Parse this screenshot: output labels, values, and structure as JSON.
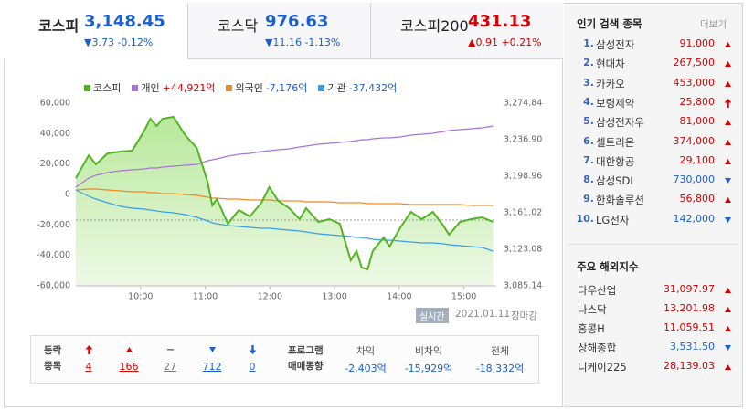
{
  "tabs": [
    {
      "name": "코스피",
      "value": "3,148.45",
      "change": "▼3.73 -0.12%",
      "trend": "down"
    },
    {
      "name": "코스닥",
      "value": "976.63",
      "change": "▼11.16 -1.13%",
      "trend": "down"
    },
    {
      "name": "코스피200",
      "value": "431.13",
      "change": "▲0.91 +0.21%",
      "trend": "up"
    }
  ],
  "chart_data": {
    "type": "line",
    "legend": "top-left",
    "grid": false,
    "x": [
      9.0,
      9.2,
      9.31,
      9.49,
      9.69,
      9.87,
      10.06,
      10.15,
      10.25,
      10.34,
      10.51,
      10.69,
      10.87,
      11.04,
      11.11,
      11.18,
      11.35,
      11.52,
      11.69,
      11.87,
      11.99,
      12.13,
      12.3,
      12.46,
      12.56,
      12.75,
      12.92,
      13.08,
      13.25,
      13.34,
      13.42,
      13.51,
      13.59,
      13.76,
      13.85,
      14.01,
      14.18,
      14.35,
      14.52,
      14.69,
      14.77,
      14.94,
      15.11,
      15.28,
      15.45
    ],
    "xlim": [
      9,
      15.5
    ],
    "xticks": [
      {
        "value": 10,
        "label": "10:00"
      },
      {
        "value": 11,
        "label": "11:00"
      },
      {
        "value": 12,
        "label": "12:00"
      },
      {
        "value": 13,
        "label": "13:00"
      },
      {
        "value": 14,
        "label": "14:00"
      },
      {
        "value": 15,
        "label": "15:00"
      }
    ],
    "ylim": [
      -60000,
      60000
    ],
    "yticks": [
      {
        "value": 60000,
        "label": "60,000"
      },
      {
        "value": 40000,
        "label": "40,000"
      },
      {
        "value": 20000,
        "label": "20,000"
      },
      0,
      {
        "value": -20000,
        "label": "-20,000"
      },
      {
        "value": -40000,
        "label": "-40,000"
      },
      {
        "value": -60000,
        "label": "-60,000"
      }
    ],
    "y2lim": [
      3085.14,
      3274.84
    ],
    "y2ticks": [
      {
        "value": 3274.84,
        "label": "3,274.84"
      },
      {
        "value": 3236.9,
        "label": "3,236.90"
      },
      {
        "value": 3198.96,
        "label": "3,198.96"
      },
      {
        "value": 3161.02,
        "label": "3,161.02"
      },
      {
        "value": 3123.08,
        "label": "3,123.08"
      },
      {
        "value": 3085.14,
        "label": "3,085.14"
      }
    ],
    "reference_line": 3153.45,
    "series": [
      {
        "name": "코스피",
        "color": "#52b51f",
        "axis": "y2",
        "area": true,
        "values": [
          3197.06,
          3220.78,
          3211.29,
          3222.67,
          3224.57,
          3225.52,
          3246.38,
          3258.72,
          3251.13,
          3258.72,
          3260.61,
          3241.64,
          3228.36,
          3192.32,
          3168.61,
          3175.25,
          3149.64,
          3163.87,
          3157.23,
          3171.45,
          3187.58,
          3173.35,
          3165.76,
          3154.38,
          3165.76,
          3151.53,
          3154.38,
          3149.64,
          3111.7,
          3121.18,
          3104.11,
          3102.21,
          3121.18,
          3135.41,
          3125.93,
          3144.9,
          3161.97,
          3154.38,
          3161.97,
          3146.79,
          3138.26,
          3151.53,
          3154.38,
          3156.28,
          3151.53
        ]
      },
      {
        "name": "개인",
        "legend_value": "+44,921억",
        "legend_value_color": "#d60000",
        "color": "#a974d6",
        "values": [
          4800,
          10800,
          12600,
          14400,
          15600,
          16200,
          16800,
          17400,
          17400,
          18000,
          18600,
          19200,
          19800,
          22200,
          22800,
          23400,
          25200,
          26400,
          27000,
          28200,
          28800,
          29400,
          30000,
          31200,
          31800,
          33000,
          33600,
          34200,
          34800,
          35400,
          36000,
          36000,
          36600,
          37200,
          37200,
          37800,
          39000,
          39600,
          40200,
          41400,
          42000,
          42600,
          43200,
          43800,
          45000
        ]
      },
      {
        "name": "외국인",
        "legend_value": "-7,176억",
        "legend_value_color": "#1c5fd0",
        "color": "#f08a24",
        "values": [
          3000,
          3600,
          3600,
          3000,
          2400,
          1800,
          1800,
          1200,
          1200,
          600,
          600,
          0,
          -600,
          -1800,
          -2400,
          -2400,
          -3000,
          -3000,
          -3600,
          -3600,
          -3600,
          -4200,
          -4200,
          -4200,
          -4800,
          -4800,
          -4800,
          -5400,
          -5400,
          -5400,
          -5400,
          -6000,
          -6000,
          -6000,
          -6000,
          -6000,
          -6600,
          -6600,
          -6600,
          -6600,
          -6600,
          -6600,
          -7200,
          -7200,
          -7200
        ]
      },
      {
        "name": "기관",
        "legend_value": "-37,432억",
        "legend_value_color": "#1c5fd0",
        "color": "#3a9ee6",
        "values": [
          3000,
          -1200,
          -3000,
          -5400,
          -7800,
          -9000,
          -9600,
          -10200,
          -10800,
          -11400,
          -12000,
          -13200,
          -15000,
          -17400,
          -18600,
          -19200,
          -20400,
          -21000,
          -21600,
          -22200,
          -22200,
          -22800,
          -23400,
          -24000,
          -24600,
          -25800,
          -26400,
          -27000,
          -27600,
          -28200,
          -28200,
          -28800,
          -29400,
          -30000,
          -30000,
          -30600,
          -31200,
          -31800,
          -31800,
          -32400,
          -33000,
          -33600,
          -34200,
          -34800,
          -37200
        ]
      }
    ]
  },
  "status": {
    "badge": "실시간",
    "date": "2021.01.11",
    "state": "장마감"
  },
  "breadth": {
    "label": [
      "등락",
      "종목"
    ],
    "items": [
      {
        "trend": "upper",
        "count": "4"
      },
      {
        "trend": "up",
        "count": "166"
      },
      {
        "trend": "flat",
        "count": "27"
      },
      {
        "trend": "down",
        "count": "712"
      },
      {
        "trend": "lower",
        "count": "0"
      }
    ]
  },
  "program": {
    "label": [
      "프로그램",
      "매매동향"
    ],
    "columns": [
      {
        "name": "차익",
        "value": "-2,403억"
      },
      {
        "name": "비차익",
        "value": "-15,929억"
      },
      {
        "name": "전체",
        "value": "-18,332억"
      }
    ]
  },
  "popular": {
    "title": "인기 검색 종목",
    "more": "더보기",
    "items": [
      {
        "rank": "1.",
        "name": "삼성전자",
        "price": "91,000",
        "trend": "up"
      },
      {
        "rank": "2.",
        "name": "현대차",
        "price": "267,500",
        "trend": "up"
      },
      {
        "rank": "3.",
        "name": "카카오",
        "price": "453,000",
        "trend": "up"
      },
      {
        "rank": "4.",
        "name": "보령제약",
        "price": "25,800",
        "trend": "upper"
      },
      {
        "rank": "5.",
        "name": "삼성전자우",
        "price": "81,000",
        "trend": "up"
      },
      {
        "rank": "6.",
        "name": "셀트리온",
        "price": "374,000",
        "trend": "up"
      },
      {
        "rank": "7.",
        "name": "대한항공",
        "price": "29,100",
        "trend": "up"
      },
      {
        "rank": "8.",
        "name": "삼성SDI",
        "price": "730,000",
        "trend": "down"
      },
      {
        "rank": "9.",
        "name": "한화솔루션",
        "price": "56,800",
        "trend": "up"
      },
      {
        "rank": "10.",
        "name": "LG전자",
        "price": "142,000",
        "trend": "down"
      }
    ]
  },
  "overseas": {
    "title": "주요 해외지수",
    "items": [
      {
        "name": "다우산업",
        "value": "31,097.97",
        "trend": "up"
      },
      {
        "name": "나스닥",
        "value": "13,201.98",
        "trend": "up"
      },
      {
        "name": "홍콩H",
        "value": "11,059.51",
        "trend": "up"
      },
      {
        "name": "상해종합",
        "value": "3,531.50",
        "trend": "down"
      },
      {
        "name": "니케이225",
        "value": "28,139.03",
        "trend": "up"
      }
    ]
  }
}
